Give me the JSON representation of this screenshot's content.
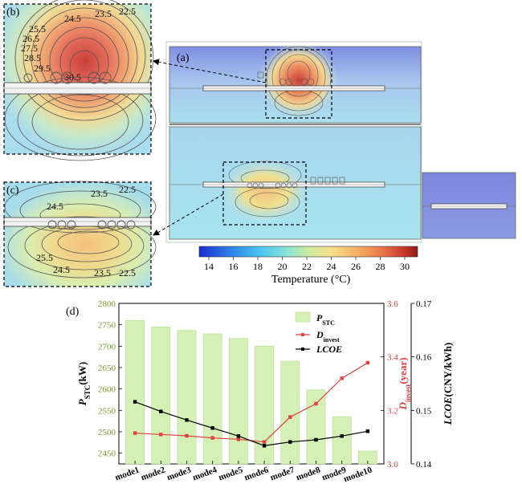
{
  "panels": {
    "a": "(a)",
    "b": "(b)",
    "c": "(c)",
    "d": "(d)"
  },
  "zoom_b_contours": [
    "22.5",
    "23.5",
    "24.5",
    "25.5",
    "26.5",
    "27.5",
    "28.5",
    "29.5",
    "30.5"
  ],
  "zoom_c_top_contours": [
    "23.5",
    "22.5",
    "24.5"
  ],
  "zoom_c_bottom_contours": [
    "25.5",
    "24.5",
    "23.5",
    "22.5"
  ],
  "colorbar": {
    "ticks": [
      "14",
      "16",
      "18",
      "20",
      "22",
      "24",
      "26",
      "28",
      "30"
    ],
    "label_main": "Temperature (",
    "label_unit": "°C)",
    "colors": [
      "#1a2cd6",
      "#2f7fe8",
      "#4ac6f0",
      "#88e4d6",
      "#cdeaa0",
      "#f4e08a",
      "#f6b266",
      "#e87448",
      "#c7362d",
      "#8b1a1a"
    ]
  },
  "chart_data": {
    "type": "bar",
    "categories": [
      "mode1",
      "mode2",
      "mode3",
      "mode4",
      "mode5",
      "mode6",
      "mode7",
      "mode8",
      "mode9",
      "mode10"
    ],
    "series": [
      {
        "name": "P",
        "name_sub": "STC",
        "type": "bar",
        "axis": "left",
        "color": "#d4f0b4",
        "values": [
          2760,
          2745,
          2737,
          2729,
          2718,
          2700,
          2665,
          2598,
          2535,
          2455
        ]
      },
      {
        "name": "D",
        "name_sub": "invest",
        "type": "line",
        "axis": "right1",
        "color": "#e04040",
        "values": [
          3.115,
          3.11,
          3.105,
          3.097,
          3.092,
          3.082,
          3.175,
          3.225,
          3.32,
          3.378
        ]
      },
      {
        "name": "LCOE",
        "type": "line",
        "axis": "right2",
        "color": "#000000",
        "values": [
          0.1516,
          0.1498,
          0.1482,
          0.1467,
          0.1452,
          0.1434,
          0.1441,
          0.1445,
          0.1452,
          0.1461
        ]
      }
    ],
    "left_axis": {
      "ylim": [
        2425,
        2800
      ],
      "ticks": [
        2450,
        2500,
        2550,
        2600,
        2650,
        2700,
        2750,
        2800
      ],
      "label": "P",
      "label_sub": "STC",
      "label_unit": "(kW)",
      "color": "#7a9a2e"
    },
    "right1_axis": {
      "ylim": [
        3.0,
        3.6
      ],
      "ticks": [
        "3.0",
        "3.2",
        "3.4",
        "3.6"
      ],
      "label": "D",
      "label_sub": "invest",
      "label_unit": "(year)",
      "color": "#e04040"
    },
    "right2_axis": {
      "ylim": [
        0.14,
        0.17
      ],
      "ticks": [
        "0.14",
        "0.15",
        "0.16",
        "0.17"
      ],
      "label": "LCOE",
      "label_unit": "(CNY/kWh)",
      "color": "#000000"
    },
    "legend_position": "top-right"
  }
}
